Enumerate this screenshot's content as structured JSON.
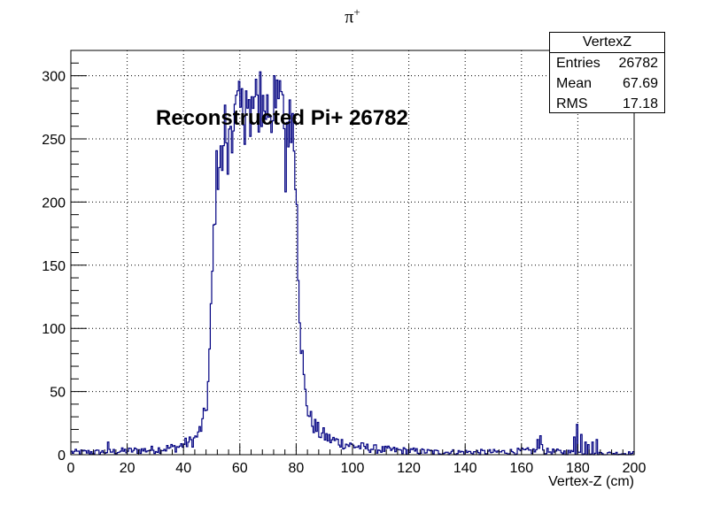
{
  "chart_data": {
    "type": "bar",
    "title": "π+",
    "title_base": "π",
    "title_sup": "+",
    "xlabel": "Vertex-Z (cm)",
    "ylabel": "",
    "xlim": [
      0,
      200
    ],
    "ylim": [
      0,
      320
    ],
    "x_ticks": [
      0,
      20,
      40,
      60,
      80,
      100,
      120,
      140,
      160,
      180,
      200
    ],
    "y_ticks": [
      0,
      50,
      100,
      150,
      200,
      250,
      300
    ],
    "grid": true,
    "line_color": "#000080",
    "bin_width": 0.5,
    "annotation": "Reconstructed Pi+ 26782",
    "stats": {
      "name": "VertexZ",
      "entries_label": "Entries",
      "entries": "26782",
      "mean_label": "Mean",
      "mean": "67.69",
      "rms_label": "RMS",
      "rms": "17.18"
    },
    "profile": [
      [
        0,
        2
      ],
      [
        10,
        2
      ],
      [
        20,
        3
      ],
      [
        30,
        4
      ],
      [
        38,
        6
      ],
      [
        44,
        12
      ],
      [
        47,
        25
      ],
      [
        48.5,
        45
      ],
      [
        49.5,
        90
      ],
      [
        50.5,
        160
      ],
      [
        51.5,
        215
      ],
      [
        53,
        245
      ],
      [
        55,
        260
      ],
      [
        60,
        270
      ],
      [
        65,
        275
      ],
      [
        70,
        275
      ],
      [
        75,
        270
      ],
      [
        78,
        260
      ],
      [
        79.5,
        230
      ],
      [
        80.5,
        170
      ],
      [
        81.5,
        100
      ],
      [
        83,
        50
      ],
      [
        85,
        28
      ],
      [
        88,
        18
      ],
      [
        92,
        12
      ],
      [
        100,
        7
      ],
      [
        110,
        4
      ],
      [
        130,
        2
      ],
      [
        150,
        2
      ],
      [
        165,
        3
      ],
      [
        175,
        2
      ],
      [
        190,
        1
      ],
      [
        200,
        1
      ]
    ],
    "spikes": [
      {
        "x": 13,
        "y": 10
      },
      {
        "x": 67,
        "y": 303
      },
      {
        "x": 62,
        "y": 288
      },
      {
        "x": 72,
        "y": 300
      },
      {
        "x": 74,
        "y": 296
      },
      {
        "x": 76,
        "y": 208
      },
      {
        "x": 53.5,
        "y": 225
      },
      {
        "x": 55.5,
        "y": 222
      },
      {
        "x": 59,
        "y": 288
      },
      {
        "x": 63.5,
        "y": 252
      },
      {
        "x": 71,
        "y": 255
      },
      {
        "x": 78.5,
        "y": 270
      },
      {
        "x": 80,
        "y": 198
      },
      {
        "x": 42,
        "y": 14
      },
      {
        "x": 45,
        "y": 18
      },
      {
        "x": 165.5,
        "y": 12
      },
      {
        "x": 166.5,
        "y": 15
      },
      {
        "x": 167,
        "y": 8
      },
      {
        "x": 178.5,
        "y": 14
      },
      {
        "x": 179.5,
        "y": 24
      },
      {
        "x": 181,
        "y": 16
      },
      {
        "x": 182.5,
        "y": 10
      },
      {
        "x": 183.5,
        "y": 8
      },
      {
        "x": 185,
        "y": 10
      },
      {
        "x": 186.5,
        "y": 12
      }
    ]
  }
}
